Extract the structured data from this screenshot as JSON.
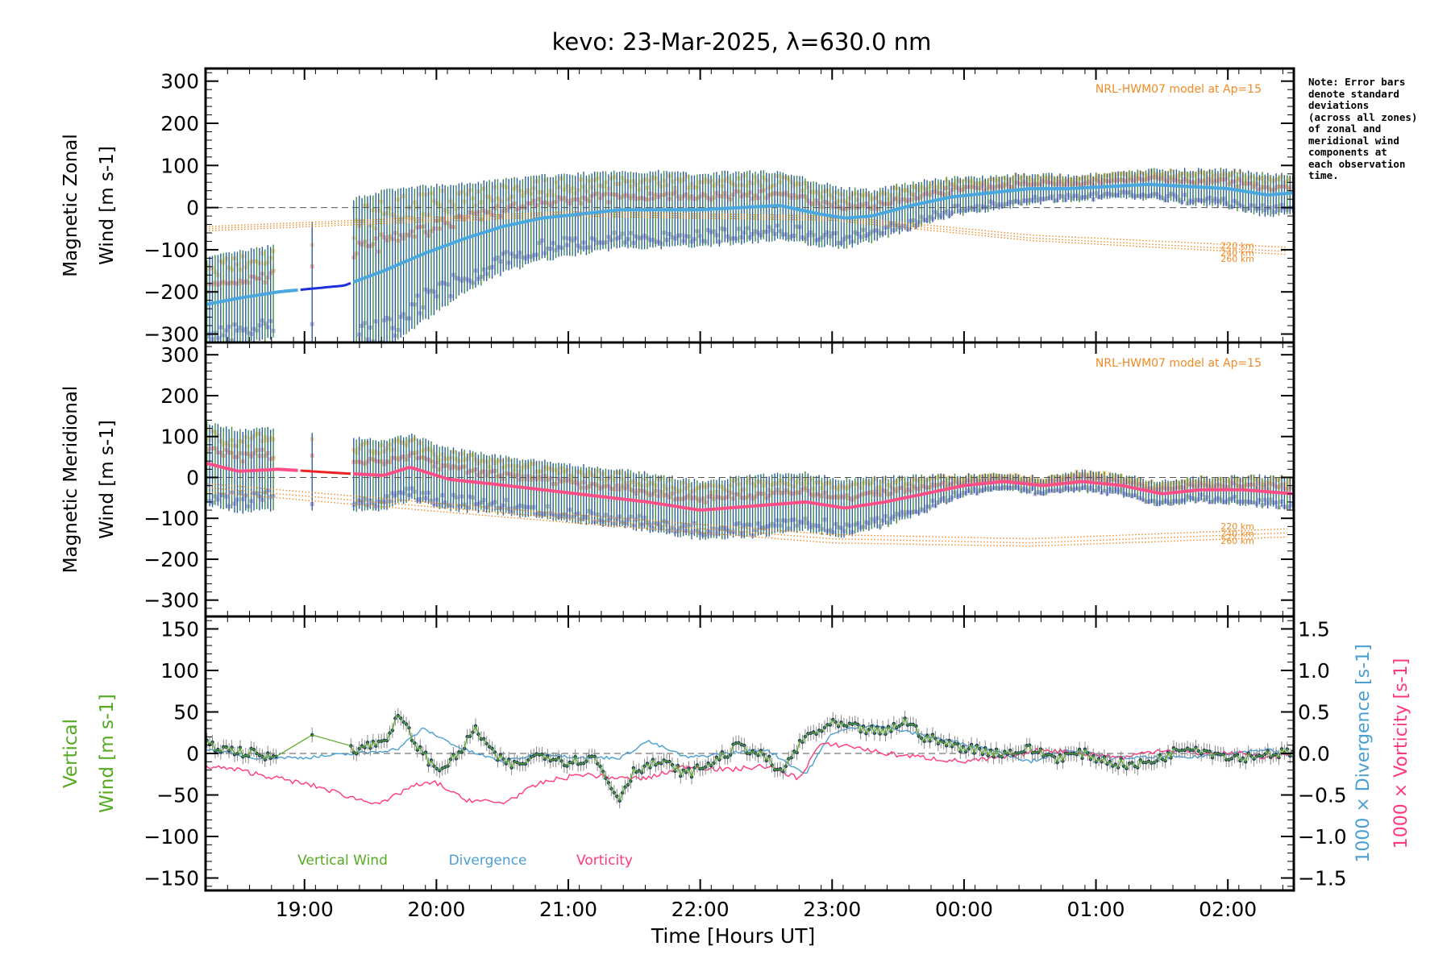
{
  "title": "kevo: 23-Mar-2025, λ=630.0 nm",
  "note_lines": [
    "Note: Error bars",
    "denote standard",
    "deviations",
    "(across all zones)",
    "of zonal and",
    "meridional wind",
    "components at",
    "each observation",
    "time."
  ],
  "colors": {
    "zonal_mean": "#4aa8e0",
    "zonal_interp": "#1f2fe0",
    "meridional_mean": "#ff4f86",
    "meridional_interp": "#ee2222",
    "model": "#f08a24",
    "errbar_a": "#2b5f9c",
    "errbar_b": "#3f8f3f",
    "zone_a": "#f7cf8a",
    "zone_b": "#a8a0d8",
    "zone_c": "#f7a090",
    "vertical": "#55aa22",
    "divergence": "#4aa0d0",
    "vorticity": "#ff3a7a",
    "axis": "#000000"
  },
  "chart_data": [
    {
      "type": "line",
      "name": "zonal",
      "ylabel_line1": "Magnetic Zonal",
      "ylabel_line2": "Wind [m s-1]",
      "ylim": [
        -320,
        330
      ],
      "yticks": [
        -300,
        -200,
        -100,
        0,
        100,
        200,
        300
      ],
      "ytick_labels": [
        "−300",
        "−200",
        "−100",
        "0",
        "100",
        "200",
        "300"
      ],
      "model_label": "NRL-HWM07 model at Ap=15",
      "model_heights": [
        "220 km",
        "240 km",
        "260 km"
      ],
      "model_series": [
        {
          "name": "220 km",
          "x": [
            18.25,
            21.0,
            23.0,
            24.5,
            26.5
          ],
          "y": [
            -45,
            -10,
            -20,
            -65,
            -95
          ]
        },
        {
          "name": "240 km",
          "x": [
            18.25,
            21.0,
            23.0,
            24.5,
            26.5
          ],
          "y": [
            -50,
            -15,
            -25,
            -72,
            -105
          ]
        },
        {
          "name": "260 km",
          "x": [
            18.25,
            21.0,
            23.0,
            24.5,
            26.5
          ],
          "y": [
            -55,
            -20,
            -30,
            -78,
            -112
          ]
        }
      ],
      "mean": {
        "x": [
          18.25,
          18.5,
          18.8,
          19.3,
          19.6,
          19.9,
          20.2,
          20.5,
          20.8,
          21.1,
          21.4,
          21.7,
          22.0,
          22.3,
          22.6,
          22.9,
          23.1,
          23.3,
          23.6,
          23.9,
          24.2,
          24.5,
          24.8,
          25.1,
          25.4,
          25.7,
          26.0,
          26.3,
          26.5
        ],
        "y": [
          -230,
          -215,
          -200,
          -185,
          -150,
          -110,
          -75,
          -45,
          -25,
          -15,
          -5,
          -5,
          -5,
          0,
          5,
          -15,
          -25,
          -20,
          5,
          25,
          35,
          45,
          45,
          50,
          55,
          50,
          45,
          30,
          35
        ]
      },
      "mean_gap": [
        18.95,
        19.35
      ],
      "error_sd": [
        110,
        110,
        110,
        200,
        190,
        160,
        130,
        110,
        100,
        95,
        90,
        90,
        85,
        85,
        80,
        75,
        70,
        60,
        55,
        45,
        40,
        35,
        30,
        30,
        35,
        40,
        45,
        50,
        45
      ]
    },
    {
      "type": "line",
      "name": "meridional",
      "ylabel_line1": "Magnetic Meridional",
      "ylabel_line2": "Wind [m s-1]",
      "ylim": [
        -340,
        330
      ],
      "yticks": [
        -300,
        -200,
        -100,
        0,
        100,
        200,
        300
      ],
      "ytick_labels": [
        "−300",
        "−200",
        "−100",
        "0",
        "100",
        "200",
        "300"
      ],
      "model_label": "NRL-HWM07 model at Ap=15",
      "model_heights": [
        "220 km",
        "240 km",
        "260 km"
      ],
      "model_series": [
        {
          "name": "220 km",
          "x": [
            18.25,
            21.0,
            23.0,
            24.5,
            26.5
          ],
          "y": [
            -15,
            -90,
            -140,
            -150,
            -125
          ]
        },
        {
          "name": "240 km",
          "x": [
            18.25,
            21.0,
            23.0,
            24.5,
            26.5
          ],
          "y": [
            -25,
            -100,
            -150,
            -160,
            -135
          ]
        },
        {
          "name": "260 km",
          "x": [
            18.25,
            21.0,
            23.0,
            24.5,
            26.5
          ],
          "y": [
            -35,
            -110,
            -160,
            -168,
            -145
          ]
        }
      ],
      "mean": {
        "x": [
          18.25,
          18.5,
          18.8,
          19.3,
          19.6,
          19.8,
          20.1,
          20.4,
          20.8,
          21.2,
          21.6,
          22.0,
          22.4,
          22.8,
          23.1,
          23.4,
          23.7,
          24.0,
          24.3,
          24.6,
          24.9,
          25.2,
          25.5,
          25.8,
          26.1,
          26.5
        ],
        "y": [
          35,
          15,
          20,
          10,
          5,
          25,
          -5,
          -15,
          -30,
          -45,
          -60,
          -80,
          -70,
          -60,
          -75,
          -60,
          -40,
          -20,
          -10,
          -20,
          -10,
          -20,
          -40,
          -30,
          -30,
          -40
        ]
      },
      "mean_gap": [
        18.95,
        19.35
      ],
      "error_sd": [
        100,
        100,
        100,
        90,
        85,
        80,
        75,
        70,
        70,
        70,
        70,
        70,
        75,
        70,
        70,
        60,
        45,
        25,
        20,
        20,
        25,
        25,
        30,
        30,
        35,
        40
      ]
    },
    {
      "type": "line",
      "name": "vertical",
      "ylabel_line1": "Vertical",
      "ylabel_line2": "Wind [m s-1]",
      "ylim": [
        -165,
        165
      ],
      "yticks": [
        -150,
        -100,
        -50,
        0,
        50,
        100,
        150
      ],
      "ytick_labels": [
        "−150",
        "−100",
        "−50",
        "0",
        "50",
        "100",
        "150"
      ],
      "right_ylabel1": "1000 × Divergence [s-1]",
      "right_ylabel2": "1000 × Vorticity [s-1]",
      "right_ylim": [
        -1.65,
        1.65
      ],
      "right_yticks": [
        -1.5,
        -1.0,
        -0.5,
        0.0,
        0.5,
        1.0,
        1.5
      ],
      "right_ytick_labels": [
        "−1.5",
        "−1.0",
        "−0.5",
        "0.0",
        "0.5",
        "1.0",
        "1.5"
      ],
      "xticks": [
        19,
        20,
        21,
        22,
        23,
        24,
        25,
        26
      ],
      "xtick_labels": [
        "19:00",
        "20:00",
        "21:00",
        "22:00",
        "23:00",
        "00:00",
        "01:00",
        "02:00"
      ],
      "xlabel": "Time [Hours UT]",
      "xlim": [
        18.25,
        26.5
      ],
      "legend": [
        "Vertical Wind",
        "Divergence",
        "Vorticity"
      ],
      "vertical_wind": {
        "x": [
          18.25,
          18.4,
          18.6,
          18.75,
          19.05,
          19.4,
          19.6,
          19.72,
          19.85,
          20.0,
          20.15,
          20.3,
          20.45,
          20.6,
          20.8,
          21.0,
          21.2,
          21.38,
          21.5,
          21.7,
          21.9,
          22.1,
          22.3,
          22.5,
          22.6,
          22.8,
          23.0,
          23.2,
          23.4,
          23.55,
          23.7,
          23.9,
          24.1,
          24.3,
          24.5,
          24.7,
          24.9,
          25.1,
          25.3,
          25.5,
          25.7,
          25.9,
          26.1,
          26.3,
          26.5
        ],
        "y": [
          10,
          5,
          0,
          -5,
          28,
          5,
          15,
          45,
          10,
          -20,
          -5,
          30,
          -5,
          -15,
          0,
          -10,
          -5,
          -55,
          -20,
          -10,
          -25,
          -10,
          10,
          -5,
          -25,
          20,
          35,
          30,
          25,
          40,
          20,
          10,
          5,
          0,
          5,
          -5,
          0,
          -10,
          -15,
          -5,
          10,
          0,
          -5,
          0,
          0
        ]
      },
      "divergence": {
        "x": [
          18.25,
          18.6,
          19.0,
          19.4,
          19.7,
          19.9,
          20.2,
          20.5,
          20.8,
          21.1,
          21.4,
          21.6,
          21.9,
          22.2,
          22.5,
          22.8,
          23.0,
          23.3,
          23.6,
          23.9,
          24.2,
          24.5,
          24.8,
          25.1,
          25.4,
          25.7,
          26.0,
          26.3,
          26.5
        ],
        "y": [
          0.05,
          -0.05,
          -0.05,
          0.0,
          0.05,
          0.3,
          0.05,
          -0.1,
          0.0,
          -0.05,
          -0.05,
          0.15,
          -0.05,
          0.0,
          0.05,
          -0.25,
          0.25,
          0.35,
          0.25,
          0.15,
          0.05,
          -0.1,
          0.05,
          -0.05,
          -0.05,
          -0.05,
          0.0,
          0.05,
          -0.05
        ]
      },
      "vorticity": {
        "x": [
          18.25,
          18.5,
          18.8,
          19.1,
          19.4,
          19.6,
          19.8,
          20.0,
          20.2,
          20.5,
          20.8,
          21.1,
          21.4,
          21.6,
          21.9,
          22.2,
          22.5,
          22.75,
          22.9,
          23.1,
          23.4,
          23.7,
          24.0,
          24.3,
          24.6,
          24.9,
          25.2,
          25.5,
          25.8,
          26.1,
          26.3,
          26.5
        ],
        "y": [
          -0.15,
          -0.2,
          -0.3,
          -0.4,
          -0.55,
          -0.6,
          -0.4,
          -0.35,
          -0.55,
          -0.6,
          -0.35,
          -0.25,
          -0.3,
          -0.3,
          -0.15,
          -0.2,
          -0.15,
          -0.3,
          0.1,
          0.1,
          0.0,
          -0.05,
          -0.1,
          -0.05,
          0.05,
          0.0,
          -0.05,
          0.05,
          0.0,
          0.0,
          -0.05,
          0.0
        ]
      }
    }
  ]
}
